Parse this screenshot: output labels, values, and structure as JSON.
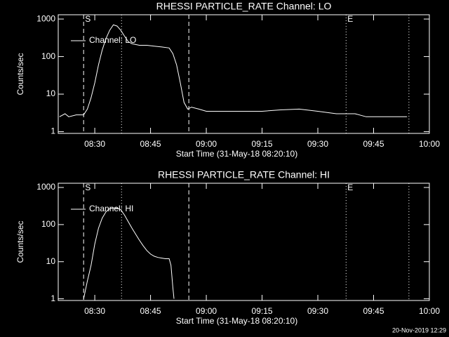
{
  "chart_data": [
    {
      "type": "line",
      "title": "RHESSI PARTICLE_RATE Channel: LO",
      "xlabel": "Start Time (31-May-18 08:20:10)",
      "ylabel": "Counts/sec",
      "log_y": true,
      "xlim": [
        500.17,
        600
      ],
      "ylim": [
        0.9,
        1300
      ],
      "xticks": [
        {
          "value": 510,
          "label": "08:30"
        },
        {
          "value": 525,
          "label": "08:45"
        },
        {
          "value": 540,
          "label": "09:00"
        },
        {
          "value": 555,
          "label": "09:15"
        },
        {
          "value": 570,
          "label": "09:30"
        },
        {
          "value": 585,
          "label": "09:45"
        },
        {
          "value": 600,
          "label": "10:00"
        }
      ],
      "yticks": [
        1,
        10,
        100,
        1000
      ],
      "vlines": [
        {
          "x": 507,
          "style": "dashed",
          "label": "S"
        },
        {
          "x": 517.2,
          "style": "dotted"
        },
        {
          "x": 535.3,
          "style": "dashed"
        },
        {
          "x": 577.6,
          "style": "dotted",
          "label": "E"
        },
        {
          "x": 594.5,
          "style": "dotted"
        }
      ],
      "x": [
        500.5,
        502,
        503,
        505,
        507,
        508,
        509,
        510,
        511,
        512,
        513,
        514,
        515,
        516,
        517,
        518,
        519,
        520,
        522,
        524,
        526,
        528,
        530,
        531,
        532,
        533,
        534,
        535,
        536,
        538,
        540,
        545,
        550,
        555,
        560,
        565,
        570,
        575,
        580,
        583,
        590,
        594
      ],
      "series": [
        {
          "name": "Channel: LO",
          "color": "#ffffff",
          "values": [
            2.5,
            3,
            2.5,
            2.8,
            2.8,
            4,
            8,
            20,
            60,
            150,
            300,
            500,
            700,
            650,
            500,
            350,
            250,
            220,
            200,
            200,
            190,
            180,
            170,
            120,
            60,
            20,
            6,
            4,
            4.5,
            4,
            3.5,
            3.5,
            3.5,
            3.5,
            3.8,
            4,
            3.5,
            3,
            3,
            2.5,
            2.5,
            2.5
          ]
        }
      ]
    },
    {
      "type": "line",
      "title": "RHESSI PARTICLE_RATE Channel: HI",
      "xlabel": "Start Time (31-May-18 08:20:10)",
      "ylabel": "Counts/sec",
      "log_y": true,
      "xlim": [
        500.17,
        600
      ],
      "ylim": [
        0.9,
        1300
      ],
      "xticks": [
        {
          "value": 510,
          "label": "08:30"
        },
        {
          "value": 525,
          "label": "08:45"
        },
        {
          "value": 540,
          "label": "09:00"
        },
        {
          "value": 555,
          "label": "09:15"
        },
        {
          "value": 570,
          "label": "09:30"
        },
        {
          "value": 585,
          "label": "09:45"
        },
        {
          "value": 600,
          "label": "10:00"
        }
      ],
      "yticks": [
        1,
        10,
        100,
        1000
      ],
      "vlines": [
        {
          "x": 507,
          "style": "dashed",
          "label": "S"
        },
        {
          "x": 517.2,
          "style": "dotted"
        },
        {
          "x": 535.3,
          "style": "dashed"
        },
        {
          "x": 577.6,
          "style": "dotted",
          "label": "E"
        },
        {
          "x": 594.5,
          "style": "dotted"
        }
      ],
      "x": [
        507,
        508,
        509,
        510,
        511,
        512,
        513,
        514,
        515,
        516,
        517,
        518,
        519,
        520,
        521,
        522,
        523,
        524,
        525,
        526,
        527,
        528,
        529,
        530,
        530.5,
        531,
        531.3
      ],
      "series": [
        {
          "name": "Channel: HI",
          "color": "#ffffff",
          "values": [
            1,
            3,
            8,
            30,
            80,
            150,
            220,
            270,
            280,
            280,
            250,
            180,
            120,
            80,
            55,
            38,
            27,
            20,
            16,
            14,
            13,
            12.5,
            12,
            12,
            8,
            2,
            1
          ]
        }
      ]
    }
  ],
  "footer": "20-Nov-2019 12:29"
}
